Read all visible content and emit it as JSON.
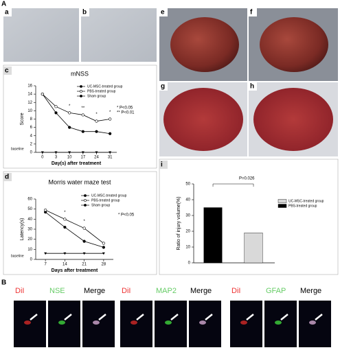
{
  "panel_letters": [
    "A",
    "a",
    "b",
    "c",
    "d",
    "e",
    "f",
    "g",
    "h",
    "i",
    "B"
  ],
  "stain_labels": [
    "DiI",
    "NSE",
    "Merge",
    "DiI",
    "MAP2",
    "Merge",
    "DiI",
    "GFAP",
    "Merge"
  ],
  "chart_data": [
    {
      "type": "line",
      "title": "mNSS",
      "x_label": "Day(s) after treatment",
      "y_label": "Score",
      "categories": [
        "0",
        "3",
        "10",
        "17",
        "24",
        "31"
      ],
      "ylim": [
        0,
        16
      ],
      "yticks": [
        0,
        2,
        4,
        6,
        8,
        10,
        12,
        14,
        16
      ],
      "series": [
        {
          "name": "UC-MSC-treated group",
          "color": "#000000",
          "marker": "filled",
          "values": [
            14,
            9.5,
            6,
            5,
            5,
            4.5
          ]
        },
        {
          "name": "PBS-treated group",
          "color": "#000000",
          "marker": "open",
          "values": [
            14,
            11,
            9.5,
            9,
            7.5,
            8
          ]
        },
        {
          "name": "Sham group",
          "color": "#000000",
          "marker": "triangle",
          "values": [
            0,
            0,
            0,
            0,
            0,
            0
          ]
        }
      ],
      "significance_marks": [
        null,
        null,
        "*",
        "**",
        "*",
        "*"
      ],
      "annotations": [
        "* P<0.05",
        "** P<0.01"
      ],
      "baseline_label": "baseline"
    },
    {
      "type": "line",
      "title": "Morris water maze test",
      "x_label": "Days after treatment",
      "y_label": "Latency(s)",
      "categories": [
        "7",
        "14",
        "21",
        "28"
      ],
      "ylim": [
        0,
        60
      ],
      "yticks": [
        0,
        10,
        20,
        30,
        40,
        50,
        60
      ],
      "series": [
        {
          "name": "UC-MSC-treated group",
          "color": "#000000",
          "marker": "filled",
          "values": [
            47,
            32,
            18,
            12
          ]
        },
        {
          "name": "PBS-treated group",
          "color": "#000000",
          "marker": "open",
          "values": [
            49,
            40,
            31,
            16
          ]
        },
        {
          "name": "Sham group",
          "color": "#000000",
          "marker": "triangle",
          "values": [
            6,
            6,
            6,
            6
          ]
        }
      ],
      "significance_marks": [
        null,
        "*",
        "*",
        null
      ],
      "annotations": [
        "* P<0.05"
      ],
      "baseline_label": "baseline"
    },
    {
      "type": "bar",
      "y_label": "Ratio of injury volume(%)",
      "ylim": [
        0,
        50
      ],
      "yticks": [
        0,
        10,
        20,
        30,
        40,
        50
      ],
      "series": [
        {
          "name": "UC-MSC-treated group",
          "color": "#d9d9d9",
          "values": [
            19
          ]
        },
        {
          "name": "PBS-treated group",
          "color": "#000000",
          "values": [
            35
          ]
        }
      ],
      "annotations": [
        "P=0.026"
      ]
    }
  ]
}
